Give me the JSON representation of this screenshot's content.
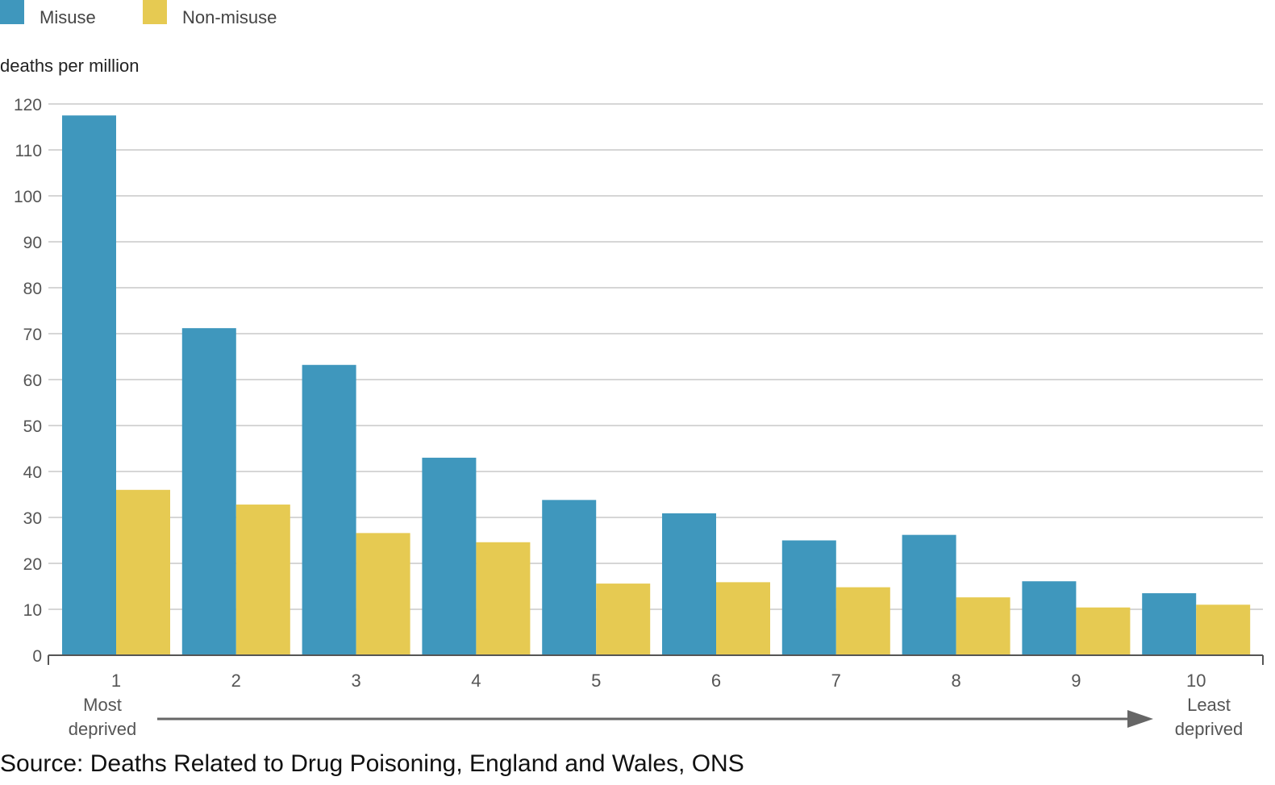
{
  "chart_data": {
    "type": "bar",
    "title": "",
    "ylabel": "deaths per million",
    "xlabel": "",
    "ylim": [
      0,
      120
    ],
    "yticks": [
      0,
      10,
      20,
      30,
      40,
      50,
      60,
      70,
      80,
      90,
      100,
      110,
      120
    ],
    "categories": [
      "1",
      "2",
      "3",
      "4",
      "5",
      "6",
      "7",
      "8",
      "9",
      "10"
    ],
    "series": [
      {
        "name": "Misuse",
        "color": "#3f97bd",
        "values": [
          117.5,
          71.2,
          63.2,
          43.0,
          33.8,
          30.9,
          25.0,
          26.2,
          16.1,
          13.5
        ]
      },
      {
        "name": "Non-misuse",
        "color": "#e6ca52",
        "values": [
          36.0,
          32.8,
          26.6,
          24.6,
          15.6,
          15.9,
          14.8,
          12.6,
          10.4,
          11.0
        ]
      }
    ],
    "legend_position": "top-left",
    "grid": true,
    "annotations": {
      "left_line1": "Most",
      "left_line2": "deprived",
      "right_line1": "Least",
      "right_line2": "deprived"
    },
    "source": "Source: Deaths Related to Drug Poisoning, England and Wales, ONS"
  }
}
